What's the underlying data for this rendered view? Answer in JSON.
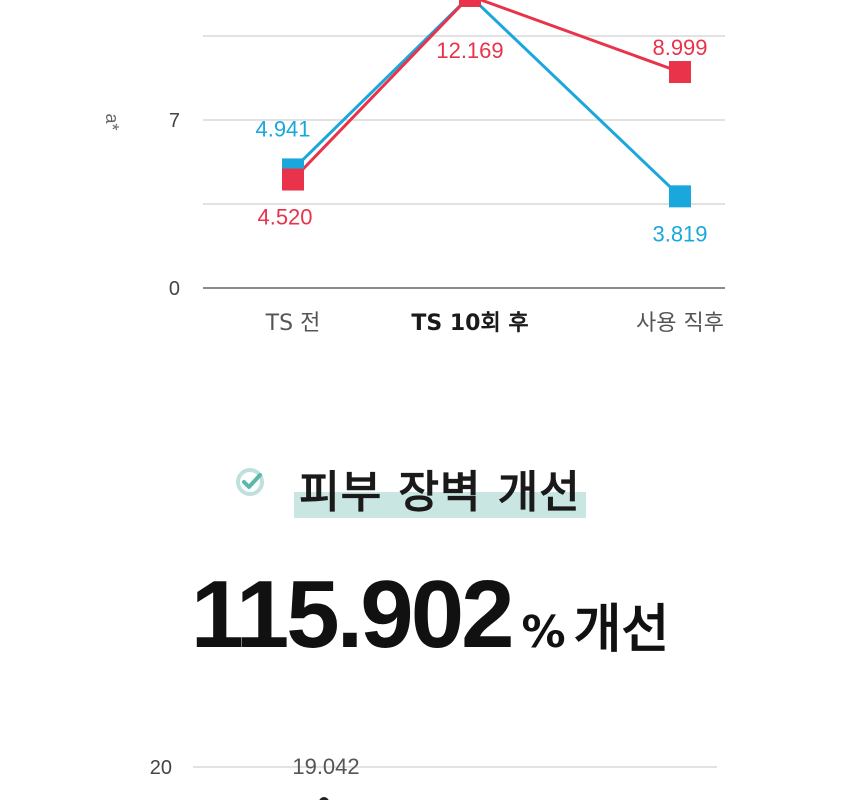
{
  "chart_data": [
    {
      "type": "line",
      "ylabel": "a*",
      "categories": [
        "TS 전",
        "TS 10회 후",
        "사용 직후"
      ],
      "yticks": [
        0,
        7
      ],
      "ylim": [
        0,
        14
      ],
      "grid": true,
      "series": [
        {
          "color": "#e8334a",
          "values": [
            4.52,
            12.169,
            8.999
          ],
          "labels": [
            "4.520",
            "12.169",
            "8.999"
          ]
        },
        {
          "color": "#1aa7dc",
          "values": [
            4.941,
            12.169,
            3.819
          ],
          "labels": [
            "4.941",
            "",
            "3.819"
          ]
        }
      ]
    },
    {
      "type": "line",
      "yticks": [
        20
      ],
      "ylim": [
        0,
        20
      ],
      "grid": true,
      "series": [
        {
          "color": "#222222",
          "values": [
            19.042
          ],
          "labels": [
            "19.042"
          ]
        }
      ]
    }
  ],
  "section": {
    "icon": "check-circle-icon",
    "title": "피부 장벽 개선",
    "highlight_color": "#c9e6e2"
  },
  "highlight_stat": {
    "value": "115.902",
    "unit": "%",
    "suffix": "개선"
  }
}
